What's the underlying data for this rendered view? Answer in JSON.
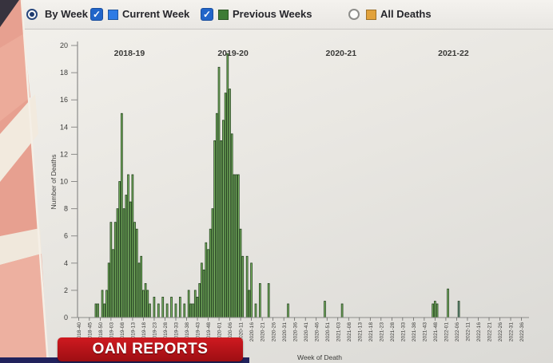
{
  "banner": {
    "text": "OAN REPORTS"
  },
  "controls": {
    "by_week": {
      "label": "By Week",
      "type": "radio",
      "selected": true
    },
    "current_week": {
      "label": "Current Week",
      "type": "checkbox",
      "checked": true,
      "swatch_color": "#2d7be5"
    },
    "previous_weeks": {
      "label": "Previous Weeks",
      "type": "checkbox",
      "checked": true,
      "swatch_color": "#3e7c36"
    },
    "all_deaths": {
      "label": "All Deaths",
      "type": "radio",
      "selected": false,
      "swatch_color": "#e2a23b"
    }
  },
  "chart_data": {
    "type": "bar",
    "title": "",
    "xlabel": "Week of Death",
    "ylabel": "Number of Deaths",
    "ylim": [
      0,
      20
    ],
    "y_ticks": [
      0,
      2,
      4,
      6,
      8,
      10,
      12,
      14,
      16,
      18,
      20
    ],
    "grid": false,
    "bar_color": "#7db964",
    "bar_stroke": "#24421f",
    "axis_color": "#8c8c8a",
    "text_color": "#3c3c3a",
    "week_structure": [
      {
        "year": 2018,
        "start": 40,
        "end": 52
      },
      {
        "year": 2019,
        "start": 1,
        "end": 52
      },
      {
        "year": 2020,
        "start": 1,
        "end": 53
      },
      {
        "year": 2021,
        "start": 1,
        "end": 52
      },
      {
        "year": 2022,
        "start": 1,
        "end": 39
      }
    ],
    "x_tick_labels": [
      "2018-40",
      "2018-45",
      "2018-50",
      "2019-03",
      "2019-08",
      "2019-13",
      "2019-18",
      "2019-23",
      "2019-28",
      "2019-33",
      "2019-38",
      "2019-43",
      "2019-48",
      "2020-01",
      "2020-06",
      "2020-11",
      "2020-16",
      "2020-21",
      "2020-26",
      "2020-31",
      "2020-36",
      "2020-41",
      "2020-46",
      "2020-51",
      "2021-03",
      "2021-08",
      "2021-13",
      "2021-18",
      "2021-23",
      "2021-28",
      "2021-33",
      "2021-38",
      "2021-43",
      "2021-48",
      "2022-01",
      "2022-06",
      "2022-11",
      "2022-16",
      "2022-21",
      "2022-26",
      "2022-31",
      "2022-36"
    ],
    "season_labels": [
      {
        "label": "2018-19",
        "index": 24
      },
      {
        "label": "2019-20",
        "index": 72
      },
      {
        "label": "2020-21",
        "index": 122
      },
      {
        "label": "2021-22",
        "index": 174
      }
    ],
    "points": [
      {
        "week": "2018-48",
        "value": 1
      },
      {
        "week": "2018-49",
        "value": 1
      },
      {
        "week": "2018-51",
        "value": 2
      },
      {
        "week": "2018-52",
        "value": 1
      },
      {
        "week": "2019-01",
        "value": 2
      },
      {
        "week": "2019-02",
        "value": 4
      },
      {
        "week": "2019-03",
        "value": 7
      },
      {
        "week": "2019-04",
        "value": 5
      },
      {
        "week": "2019-05",
        "value": 7
      },
      {
        "week": "2019-06",
        "value": 8
      },
      {
        "week": "2019-07",
        "value": 10
      },
      {
        "week": "2019-08",
        "value": 15
      },
      {
        "week": "2019-09",
        "value": 8
      },
      {
        "week": "2019-10",
        "value": 9
      },
      {
        "week": "2019-11",
        "value": 10.5
      },
      {
        "week": "2019-12",
        "value": 8.5
      },
      {
        "week": "2019-13",
        "value": 10.5
      },
      {
        "week": "2019-14",
        "value": 7
      },
      {
        "week": "2019-15",
        "value": 6.5
      },
      {
        "week": "2019-16",
        "value": 4
      },
      {
        "week": "2019-17",
        "value": 4.5
      },
      {
        "week": "2019-18",
        "value": 2
      },
      {
        "week": "2019-19",
        "value": 2.5
      },
      {
        "week": "2019-20",
        "value": 2
      },
      {
        "week": "2019-21",
        "value": 1
      },
      {
        "week": "2019-23",
        "value": 1.5
      },
      {
        "week": "2019-25",
        "value": 1
      },
      {
        "week": "2019-27",
        "value": 1.5
      },
      {
        "week": "2019-29",
        "value": 1
      },
      {
        "week": "2019-31",
        "value": 1.5
      },
      {
        "week": "2019-33",
        "value": 1
      },
      {
        "week": "2019-35",
        "value": 1.5
      },
      {
        "week": "2019-37",
        "value": 1
      },
      {
        "week": "2019-39",
        "value": 2
      },
      {
        "week": "2019-40",
        "value": 1
      },
      {
        "week": "2019-41",
        "value": 1
      },
      {
        "week": "2019-42",
        "value": 2
      },
      {
        "week": "2019-43",
        "value": 1.5
      },
      {
        "week": "2019-44",
        "value": 2.5
      },
      {
        "week": "2019-45",
        "value": 4
      },
      {
        "week": "2019-46",
        "value": 3.5
      },
      {
        "week": "2019-47",
        "value": 5.5
      },
      {
        "week": "2019-48",
        "value": 5
      },
      {
        "week": "2019-49",
        "value": 6.5
      },
      {
        "week": "2019-50",
        "value": 8
      },
      {
        "week": "2019-51",
        "value": 13
      },
      {
        "week": "2019-52",
        "value": 15
      },
      {
        "week": "2020-01",
        "value": 18.4
      },
      {
        "week": "2020-02",
        "value": 13
      },
      {
        "week": "2020-03",
        "value": 14.5
      },
      {
        "week": "2020-04",
        "value": 16.5
      },
      {
        "week": "2020-05",
        "value": 19.4
      },
      {
        "week": "2020-06",
        "value": 16.8
      },
      {
        "week": "2020-07",
        "value": 13.5
      },
      {
        "week": "2020-08",
        "value": 10.5
      },
      {
        "week": "2020-09",
        "value": 10.5
      },
      {
        "week": "2020-10",
        "value": 10.5
      },
      {
        "week": "2020-11",
        "value": 6.5
      },
      {
        "week": "2020-12",
        "value": 4.5
      },
      {
        "week": "2020-14",
        "value": 4.5
      },
      {
        "week": "2020-15",
        "value": 2
      },
      {
        "week": "2020-16",
        "value": 4
      },
      {
        "week": "2020-18",
        "value": 1
      },
      {
        "week": "2020-20",
        "value": 2.5
      },
      {
        "week": "2020-24",
        "value": 2.5
      },
      {
        "week": "2020-33",
        "value": 1
      },
      {
        "week": "2020-50",
        "value": 1.2
      },
      {
        "week": "2021-05",
        "value": 1
      },
      {
        "week": "2021-47",
        "value": 1
      },
      {
        "week": "2021-48",
        "value": 1.2
      },
      {
        "week": "2021-49",
        "value": 1
      },
      {
        "week": "2022-02",
        "value": 2.1
      },
      {
        "week": "2022-07",
        "value": 1.2,
        "color": "#6d938f"
      }
    ]
  }
}
